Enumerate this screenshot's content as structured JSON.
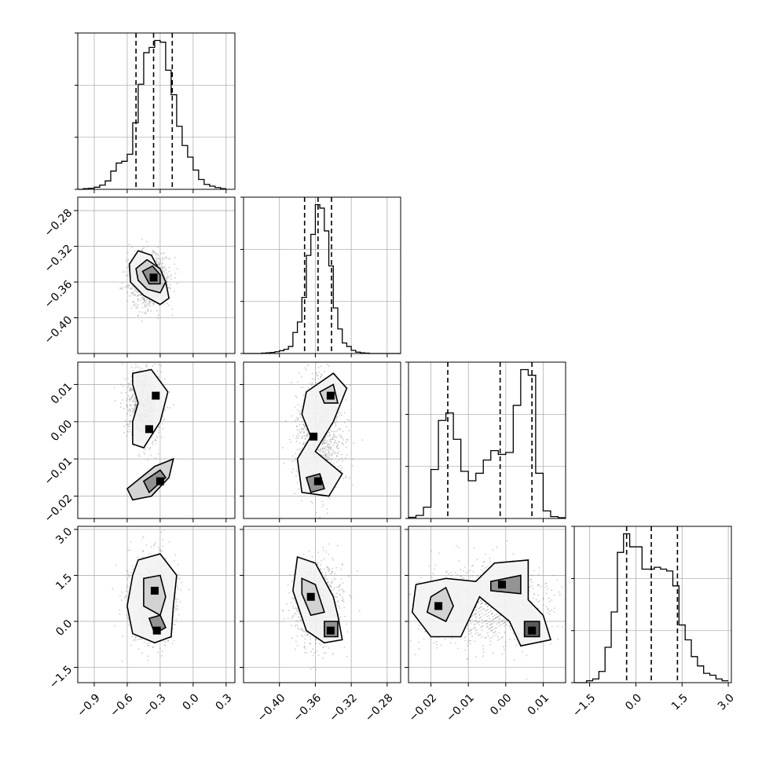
{
  "chart_data": {
    "type": "corner",
    "description": "Corner plot of 4 parameters: 1D histograms on diagonal with dashed 16/50/84% quantile lines; 2D density + contours below diagonal",
    "grid": true,
    "parameters": [
      {
        "index": 0,
        "range": [
          -1.05,
          0.38
        ],
        "ticks": [
          -0.9,
          -0.6,
          -0.3,
          0.0,
          0.3
        ],
        "tick_labels": [
          "−0.9",
          "−0.6",
          "−0.3",
          "0.0",
          "0.3"
        ],
        "quantiles": [
          -0.52,
          -0.36,
          -0.19
        ],
        "hist_bins": [
          -1.05,
          -1.0,
          -0.95,
          -0.9,
          -0.85,
          -0.8,
          -0.75,
          -0.7,
          -0.65,
          -0.6,
          -0.55,
          -0.5,
          -0.45,
          -0.4,
          -0.35,
          -0.3,
          -0.25,
          -0.2,
          -0.15,
          -0.1,
          -0.05,
          0.0,
          0.05,
          0.1,
          0.15,
          0.2,
          0.25,
          0.3
        ],
        "hist_counts": [
          0,
          2,
          3,
          6,
          12,
          24,
          52,
          75,
          80,
          100,
          190,
          300,
          390,
          405,
          425,
          420,
          340,
          270,
          180,
          125,
          92,
          55,
          28,
          14,
          9,
          5,
          2
        ]
      },
      {
        "index": 1,
        "range": [
          -0.44,
          -0.265
        ],
        "ticks": [
          -0.4,
          -0.36,
          -0.32,
          -0.28
        ],
        "tick_labels": [
          "−0.40",
          "−0.36",
          "−0.32",
          "−0.28"
        ],
        "quantiles": [
          -0.372,
          -0.357,
          -0.342
        ],
        "hist_bins": [
          -0.44,
          -0.435,
          -0.43,
          -0.425,
          -0.42,
          -0.415,
          -0.41,
          -0.405,
          -0.4,
          -0.395,
          -0.39,
          -0.385,
          -0.38,
          -0.375,
          -0.37,
          -0.365,
          -0.36,
          -0.355,
          -0.35,
          -0.345,
          -0.34,
          -0.335,
          -0.33,
          -0.325,
          -0.32,
          -0.315,
          -0.31,
          -0.305,
          -0.3,
          -0.295,
          -0.29,
          -0.285,
          -0.28,
          -0.275,
          -0.27,
          -0.265
        ],
        "hist_counts": [
          0,
          0,
          0,
          0,
          1,
          2,
          3,
          5,
          8,
          12,
          20,
          60,
          90,
          160,
          280,
          340,
          425,
          415,
          350,
          250,
          130,
          70,
          30,
          20,
          9,
          4,
          2,
          1,
          0,
          0,
          0,
          0,
          0,
          0,
          0
        ]
      },
      {
        "index": 2,
        "range": [
          -0.026,
          0.016
        ],
        "ticks": [
          -0.02,
          -0.01,
          0.0,
          0.01
        ],
        "tick_labels": [
          "−0.02",
          "−0.01",
          "0.00",
          "0.01"
        ],
        "quantiles": [
          -0.0155,
          -0.0015,
          0.007
        ],
        "hist_bins": [
          -0.026,
          -0.024,
          -0.022,
          -0.02,
          -0.018,
          -0.016,
          -0.014,
          -0.012,
          -0.01,
          -0.008,
          -0.006,
          -0.004,
          -0.002,
          0.0,
          0.002,
          0.004,
          0.006,
          0.008,
          0.01,
          0.012,
          0.014,
          0.016
        ],
        "hist_counts": [
          3,
          8,
          30,
          130,
          260,
          280,
          210,
          125,
          100,
          120,
          155,
          180,
          170,
          175,
          300,
          395,
          380,
          120,
          20,
          5,
          2
        ]
      },
      {
        "index": 3,
        "range": [
          -2.0,
          3.1
        ],
        "ticks": [
          -1.5,
          0.0,
          1.5,
          3.0
        ],
        "tick_labels": [
          "−1.5",
          "0.0",
          "1.5",
          "3.0"
        ],
        "quantiles": [
          -0.3,
          0.5,
          1.35
        ],
        "hist_bins": [
          -2.0,
          -1.8,
          -1.6,
          -1.4,
          -1.2,
          -1.0,
          -0.8,
          -0.6,
          -0.4,
          -0.2,
          0.0,
          0.2,
          0.4,
          0.6,
          0.8,
          1.0,
          1.2,
          1.4,
          1.6,
          1.8,
          2.0,
          2.2,
          2.4,
          2.6,
          2.8,
          3.0
        ],
        "hist_counts": [
          0,
          0,
          5,
          10,
          30,
          95,
          190,
          350,
          400,
          365,
          365,
          305,
          305,
          310,
          305,
          300,
          260,
          155,
          115,
          70,
          45,
          25,
          20,
          10,
          5
        ]
      }
    ],
    "pairs": [
      {
        "x": 0,
        "y": 1,
        "contours": [
          [
            [
              -0.58,
              -0.34
            ],
            [
              -0.5,
              -0.325
            ],
            [
              -0.38,
              -0.33
            ],
            [
              -0.25,
              -0.36
            ],
            [
              -0.22,
              -0.378
            ],
            [
              -0.3,
              -0.385
            ],
            [
              -0.45,
              -0.375
            ],
            [
              -0.57,
              -0.36
            ]
          ],
          [
            [
              -0.52,
              -0.345
            ],
            [
              -0.42,
              -0.335
            ],
            [
              -0.3,
              -0.345
            ],
            [
              -0.25,
              -0.36
            ],
            [
              -0.3,
              -0.372
            ],
            [
              -0.42,
              -0.368
            ],
            [
              -0.5,
              -0.358
            ]
          ],
          [
            [
              -0.46,
              -0.348
            ],
            [
              -0.37,
              -0.342
            ],
            [
              -0.3,
              -0.352
            ],
            [
              -0.3,
              -0.362
            ],
            [
              -0.4,
              -0.362
            ]
          ]
        ],
        "density_peak": [
          -0.36,
          -0.355
        ]
      },
      {
        "x": 0,
        "y": 2,
        "contours": [
          [
            [
              -0.55,
              0.013
            ],
            [
              -0.38,
              0.014
            ],
            [
              -0.23,
              0.008
            ],
            [
              -0.3,
              0.0
            ],
            [
              -0.45,
              -0.007
            ],
            [
              -0.55,
              -0.006
            ],
            [
              -0.55,
              0.0
            ],
            [
              -0.5,
              0.005
            ],
            [
              -0.55,
              0.01
            ]
          ],
          [
            [
              -0.6,
              -0.018
            ],
            [
              -0.35,
              -0.012
            ],
            [
              -0.18,
              -0.01
            ],
            [
              -0.22,
              -0.015
            ],
            [
              -0.38,
              -0.02
            ],
            [
              -0.55,
              -0.021
            ]
          ],
          [
            [
              -0.45,
              -0.016
            ],
            [
              -0.3,
              -0.013
            ],
            [
              -0.25,
              -0.015
            ],
            [
              -0.4,
              -0.019
            ]
          ]
        ],
        "density_peaks": [
          [
            -0.34,
            0.007
          ],
          [
            -0.4,
            -0.002
          ],
          [
            -0.3,
            -0.016
          ]
        ]
      },
      {
        "x": 1,
        "y": 2,
        "contours": [
          [
            [
              -0.37,
              0.008
            ],
            [
              -0.34,
              0.013
            ],
            [
              -0.325,
              0.009
            ],
            [
              -0.34,
              0.0
            ],
            [
              -0.36,
              -0.008
            ],
            [
              -0.33,
              -0.014
            ],
            [
              -0.345,
              -0.02
            ],
            [
              -0.375,
              -0.019
            ],
            [
              -0.38,
              -0.01
            ],
            [
              -0.365,
              -0.004
            ],
            [
              -0.375,
              0.002
            ]
          ],
          [
            [
              -0.355,
              0.008
            ],
            [
              -0.34,
              0.01
            ],
            [
              -0.335,
              0.005
            ],
            [
              -0.35,
              0.005
            ]
          ],
          [
            [
              -0.37,
              -0.015
            ],
            [
              -0.355,
              -0.014
            ],
            [
              -0.35,
              -0.018
            ],
            [
              -0.365,
              -0.019
            ]
          ]
        ],
        "density_peaks": [
          [
            -0.343,
            0.007
          ],
          [
            -0.362,
            -0.004
          ],
          [
            -0.357,
            -0.016
          ]
        ]
      },
      {
        "x": 0,
        "y": 3,
        "contours": [
          [
            [
              -0.5,
              2.0
            ],
            [
              -0.3,
              2.2
            ],
            [
              -0.15,
              1.5
            ],
            [
              -0.18,
              0.5
            ],
            [
              -0.2,
              -0.5
            ],
            [
              -0.35,
              -0.7
            ],
            [
              -0.55,
              -0.4
            ],
            [
              -0.6,
              0.5
            ],
            [
              -0.55,
              1.5
            ]
          ],
          [
            [
              -0.45,
              1.4
            ],
            [
              -0.3,
              1.5
            ],
            [
              -0.25,
              0.8
            ],
            [
              -0.3,
              0.2
            ],
            [
              -0.45,
              0.5
            ]
          ],
          [
            [
              -0.4,
              0.1
            ],
            [
              -0.3,
              0.2
            ],
            [
              -0.25,
              -0.2
            ],
            [
              -0.35,
              -0.4
            ]
          ]
        ],
        "density_peaks": [
          [
            -0.33,
            -0.3
          ],
          [
            -0.35,
            1.0
          ]
        ]
      },
      {
        "x": 1,
        "y": 3,
        "contours": [
          [
            [
              -0.38,
              2.1
            ],
            [
              -0.36,
              1.9
            ],
            [
              -0.34,
              0.8
            ],
            [
              -0.335,
              0.2
            ],
            [
              -0.33,
              -0.6
            ],
            [
              -0.35,
              -0.7
            ],
            [
              -0.37,
              -0.3
            ],
            [
              -0.385,
              1.0
            ]
          ],
          [
            [
              -0.375,
              1.4
            ],
            [
              -0.36,
              1.2
            ],
            [
              -0.35,
              0.3
            ],
            [
              -0.365,
              0.2
            ],
            [
              -0.375,
              0.9
            ]
          ],
          [
            [
              -0.35,
              0.0
            ],
            [
              -0.335,
              0.0
            ],
            [
              -0.335,
              -0.5
            ],
            [
              -0.35,
              -0.5
            ]
          ]
        ],
        "density_peaks": [
          [
            -0.343,
            -0.3
          ],
          [
            -0.365,
            0.8
          ]
        ]
      },
      {
        "x": 2,
        "y": 3,
        "contours": [
          [
            [
              -0.024,
              1.2
            ],
            [
              -0.016,
              1.4
            ],
            [
              -0.008,
              1.3
            ],
            [
              -0.003,
              1.9
            ],
            [
              0.006,
              2.0
            ],
            [
              0.006,
              0.7
            ],
            [
              0.01,
              0.2
            ],
            [
              0.012,
              -0.6
            ],
            [
              0.004,
              -0.8
            ],
            [
              0.001,
              0.0
            ],
            [
              -0.007,
              0.8
            ],
            [
              -0.012,
              -0.5
            ],
            [
              -0.02,
              -0.5
            ],
            [
              -0.025,
              0.3
            ]
          ],
          [
            [
              -0.02,
              0.8
            ],
            [
              -0.016,
              1.1
            ],
            [
              -0.014,
              0.5
            ],
            [
              -0.016,
              0.0
            ],
            [
              -0.021,
              0.3
            ]
          ],
          [
            [
              -0.004,
              1.3
            ],
            [
              0.004,
              1.5
            ],
            [
              0.004,
              0.9
            ],
            [
              -0.004,
              1.0
            ]
          ],
          [
            [
              0.005,
              0.0
            ],
            [
              0.009,
              0.0
            ],
            [
              0.009,
              -0.5
            ],
            [
              0.005,
              -0.5
            ]
          ]
        ],
        "density_peaks": [
          [
            0.007,
            -0.3
          ],
          [
            -0.018,
            0.5
          ],
          [
            -0.001,
            1.2
          ]
        ]
      }
    ]
  }
}
